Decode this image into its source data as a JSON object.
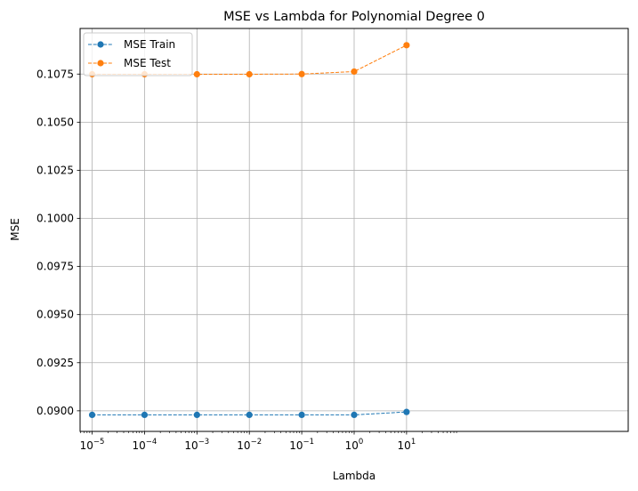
{
  "chart_data": {
    "type": "line",
    "title": "MSE vs Lambda for Polynomial Degree 0",
    "xlabel": "Lambda",
    "ylabel": "MSE",
    "x_scale": "log",
    "x": [
      1e-05,
      0.0001,
      0.001,
      0.01,
      0.1,
      1,
      10
    ],
    "x_tick_labels": [
      {
        "base": "10",
        "exp": "−5"
      },
      {
        "base": "10",
        "exp": "−4"
      },
      {
        "base": "10",
        "exp": "−3"
      },
      {
        "base": "10",
        "exp": "−2"
      },
      {
        "base": "10",
        "exp": "−1"
      },
      {
        "base": "10",
        "exp": "0"
      },
      {
        "base": "10",
        "exp": "1"
      }
    ],
    "xlim_log10": [
      -5.23,
      5.23
    ],
    "y_ticks": [
      0.09,
      0.0925,
      0.095,
      0.0975,
      0.1,
      0.1025,
      0.105,
      0.1075
    ],
    "y_tick_labels": [
      "0.0900",
      "0.0925",
      "0.0950",
      "0.0975",
      "0.1000",
      "0.1025",
      "0.1050",
      "0.1075"
    ],
    "ylim": [
      0.08893,
      0.10987
    ],
    "grid": true,
    "legend_position": "top-left",
    "series": [
      {
        "name": "MSE Train",
        "color": "#1f77b4",
        "line_style": "dashed",
        "marker": "circle",
        "values": [
          0.08979,
          0.08979,
          0.08979,
          0.08979,
          0.08979,
          0.08979,
          0.08994
        ]
      },
      {
        "name": "MSE Test",
        "color": "#ff7f0e",
        "line_style": "dashed",
        "marker": "circle",
        "values": [
          0.10749,
          0.10749,
          0.10749,
          0.10749,
          0.1075,
          0.10763,
          0.109
        ]
      }
    ]
  }
}
